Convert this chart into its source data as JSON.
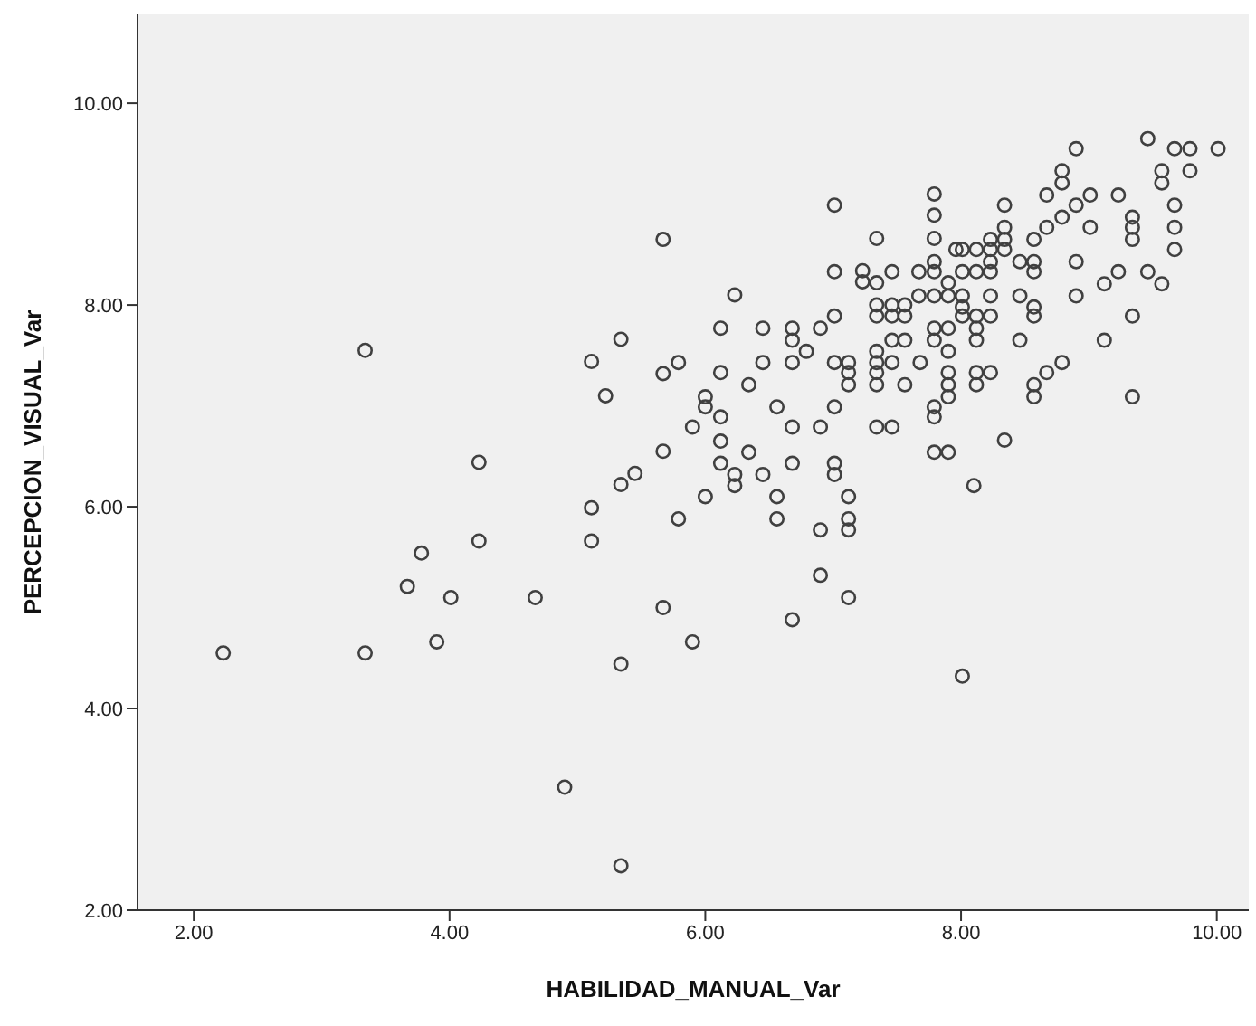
{
  "chart_data": {
    "type": "scatter",
    "xlabel": "HABILIDAD_MANUAL_Var",
    "ylabel": "PERCEPCION_VISUAL_Var",
    "xlim": [
      1.56,
      10.25
    ],
    "ylim": [
      2,
      10.88
    ],
    "xticks": [
      {
        "value": 2,
        "label": "2.00"
      },
      {
        "value": 4,
        "label": "4.00"
      },
      {
        "value": 6,
        "label": "6.00"
      },
      {
        "value": 8,
        "label": "8.00"
      },
      {
        "value": 10,
        "label": "10.00"
      }
    ],
    "yticks": [
      {
        "value": 2,
        "label": "2.00"
      },
      {
        "value": 4,
        "label": "4.00"
      },
      {
        "value": 6,
        "label": "6.00"
      },
      {
        "value": 8,
        "label": "8.00"
      },
      {
        "value": 10,
        "label": "10.00"
      }
    ],
    "grid": false,
    "legend": false,
    "marker": "circle",
    "series": [
      {
        "color": "#404040",
        "x": [
          2.23,
          3.34,
          3.34,
          5.34,
          5.11,
          5.22,
          4.23,
          5.45,
          5.34,
          5.11,
          5.11,
          4.23,
          3.78,
          3.67,
          4.01,
          4.67,
          3.9,
          5.34,
          4.9,
          5.34,
          5.67,
          5.67,
          5.67,
          5.67,
          7.01,
          7.34,
          7.79,
          7.79,
          7.79,
          7.96,
          7.79,
          7.01,
          7.23,
          7.46,
          7.23,
          7.34,
          7.67,
          7.79,
          7.67,
          7.79,
          7.9,
          7.9,
          6.23,
          7.34,
          7.46,
          7.56,
          7.34,
          7.46,
          7.56,
          7.01,
          6.9,
          6.68,
          6.45,
          6.12,
          6.68,
          6.79,
          7.46,
          7.56,
          7.79,
          7.9,
          7.79,
          7.9,
          7.34,
          7.34,
          7.46,
          7.68,
          7.01,
          7.12,
          7.12,
          7.12,
          7.34,
          7.34,
          7.56,
          7.9,
          7.9,
          7.9,
          6.45,
          6.68,
          5.79,
          6.12,
          6.34,
          6.0,
          6.0,
          6.12,
          6.56,
          7.01,
          7.79,
          7.79,
          5.9,
          6.68,
          6.9,
          7.34,
          7.46,
          6.12,
          6.34,
          6.12,
          6.23,
          6.23,
          6.45,
          6.68,
          7.01,
          7.01,
          7.79,
          7.9,
          8.1,
          6.0,
          6.56,
          7.12,
          5.79,
          6.56,
          6.9,
          7.12,
          7.12,
          6.9,
          7.12,
          6.68,
          5.9,
          8.01,
          8.9,
          9.46,
          9.67,
          9.79,
          10.01,
          9.79,
          9.57,
          9.57,
          8.79,
          8.79,
          8.67,
          9.01,
          9.23,
          8.34,
          8.9,
          8.79,
          8.67,
          9.01,
          9.34,
          9.34,
          9.34,
          9.67,
          9.67,
          9.67,
          8.34,
          8.34,
          8.23,
          8.23,
          8.34,
          8.01,
          8.12,
          8.57,
          8.46,
          8.57,
          8.57,
          8.23,
          8.01,
          8.12,
          8.23,
          8.9,
          9.12,
          9.23,
          9.46,
          9.57,
          8.01,
          8.23,
          8.46,
          8.57,
          8.57,
          8.9,
          8.01,
          8.01,
          8.12,
          8.23,
          8.12,
          8.12,
          8.46,
          9.34,
          9.12,
          8.79,
          8.67,
          8.57,
          8.57,
          8.12,
          8.23,
          8.12,
          9.34,
          8.34
        ],
        "values": [
          4.55,
          7.55,
          4.55,
          7.66,
          7.44,
          7.1,
          6.44,
          6.33,
          6.22,
          5.99,
          5.66,
          5.66,
          5.54,
          5.21,
          5.1,
          5.1,
          4.66,
          4.44,
          3.22,
          2.44,
          8.65,
          7.32,
          6.55,
          5.0,
          8.99,
          8.66,
          9.1,
          8.89,
          8.66,
          8.55,
          8.43,
          8.33,
          8.34,
          8.33,
          8.23,
          8.22,
          8.33,
          8.33,
          8.09,
          8.09,
          8.22,
          8.09,
          8.1,
          8.0,
          8.0,
          8.0,
          7.89,
          7.89,
          7.89,
          7.89,
          7.77,
          7.77,
          7.77,
          7.77,
          7.65,
          7.54,
          7.65,
          7.65,
          7.77,
          7.77,
          7.65,
          7.54,
          7.54,
          7.43,
          7.43,
          7.43,
          7.43,
          7.43,
          7.33,
          7.21,
          7.33,
          7.21,
          7.21,
          7.33,
          7.21,
          7.09,
          7.43,
          7.43,
          7.43,
          7.33,
          7.21,
          7.09,
          6.99,
          6.89,
          6.99,
          6.99,
          6.99,
          6.89,
          6.79,
          6.79,
          6.79,
          6.79,
          6.79,
          6.65,
          6.54,
          6.43,
          6.32,
          6.21,
          6.32,
          6.43,
          6.43,
          6.32,
          6.54,
          6.54,
          6.21,
          6.1,
          6.1,
          6.1,
          5.88,
          5.88,
          5.77,
          5.88,
          5.77,
          5.32,
          5.1,
          4.88,
          4.66,
          4.32,
          9.55,
          9.65,
          9.55,
          9.55,
          9.55,
          9.33,
          9.33,
          9.21,
          9.33,
          9.21,
          9.09,
          9.09,
          9.09,
          8.99,
          8.99,
          8.87,
          8.77,
          8.77,
          8.87,
          8.77,
          8.65,
          8.99,
          8.77,
          8.55,
          8.77,
          8.65,
          8.65,
          8.55,
          8.55,
          8.55,
          8.55,
          8.65,
          8.43,
          8.43,
          8.33,
          8.43,
          8.33,
          8.33,
          8.33,
          8.43,
          8.21,
          8.33,
          8.33,
          8.21,
          8.09,
          8.09,
          8.09,
          7.98,
          7.89,
          8.09,
          7.98,
          7.89,
          7.89,
          7.89,
          7.77,
          7.65,
          7.65,
          7.89,
          7.65,
          7.43,
          7.33,
          7.21,
          7.09,
          7.33,
          7.33,
          7.21,
          7.09,
          6.66
        ]
      }
    ]
  }
}
